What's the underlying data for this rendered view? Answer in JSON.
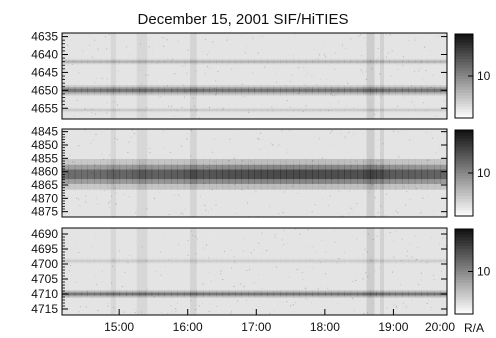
{
  "chart_data": {
    "type": "heatmap",
    "title": "December 15, 2001 SIF/HiTIES",
    "x_ticks": [
      "15:00",
      "16:00",
      "17:00",
      "18:00",
      "19:00",
      "20:00"
    ],
    "x_range": [
      "14:10",
      "20:00"
    ],
    "colorbar_unit": "R/A",
    "grid": false,
    "panels": [
      {
        "ylim": [
          4658,
          4634
        ],
        "y_ticks": [
          "4635",
          "4640",
          "4645",
          "4650",
          "4655"
        ],
        "colorbar_tick": "10",
        "lines": [
          {
            "center": 4650.0,
            "width": 0.9,
            "strength": 0.55
          },
          {
            "center": 4642.0,
            "width": 0.5,
            "strength": 0.22
          },
          {
            "center": 4655.5,
            "width": 0.4,
            "strength": 0.12
          }
        ]
      },
      {
        "ylim": [
          4877,
          4844
        ],
        "y_ticks": [
          "4845",
          "4850",
          "4855",
          "4860",
          "4865",
          "4870",
          "4875"
        ],
        "colorbar_tick": "10",
        "lines": [
          {
            "center": 4861.0,
            "width": 3.6,
            "strength": 0.8
          }
        ]
      },
      {
        "ylim": [
          4717,
          4688
        ],
        "y_ticks": [
          "4690",
          "4695",
          "4700",
          "4705",
          "4710",
          "4715"
        ],
        "colorbar_tick": "10",
        "lines": [
          {
            "center": 4710.0,
            "width": 0.8,
            "strength": 0.55
          },
          {
            "center": 4699.0,
            "width": 0.6,
            "strength": 0.1
          }
        ]
      }
    ]
  }
}
